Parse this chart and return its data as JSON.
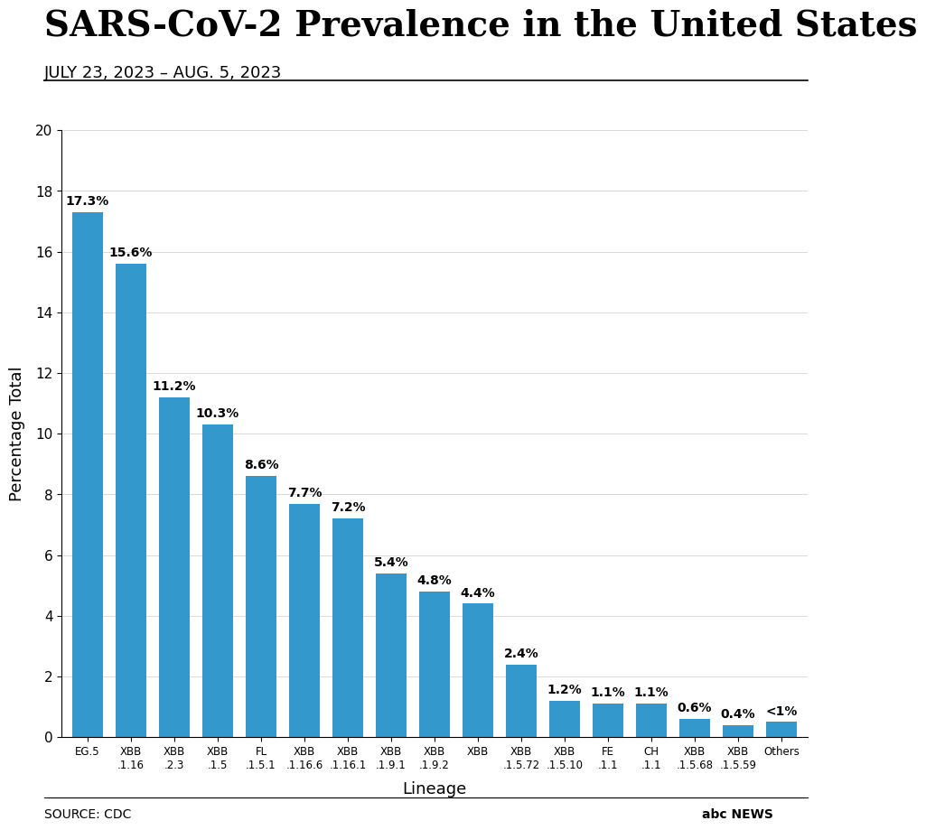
{
  "title": "SARS-CoV-2 Prevalence in the United States",
  "subtitle": "JULY 23, 2023 – AUG. 5, 2023",
  "xlabel": "Lineage",
  "ylabel": "Percentage Total",
  "source": "SOURCE: CDC",
  "categories": [
    "EG.5",
    "XBB\n.1.16",
    "XBB\n.2.3",
    "XBB\n.1.5",
    "FL\n.1.5.1",
    "XBB\n.1.16.6",
    "XBB\n.1.16.1",
    "XBB\n.1.9.1",
    "XBB\n.1.9.2",
    "XBB",
    "XBB\n.1.5.72",
    "XBB\n.1.5.10",
    "FE\n.1.1",
    "CH\n.1.1",
    "XBB\n.1.5.68",
    "XBB\n.1.5.59",
    "Others"
  ],
  "values": [
    17.3,
    15.6,
    11.2,
    10.3,
    8.6,
    7.7,
    7.2,
    5.4,
    4.8,
    4.4,
    2.4,
    1.2,
    1.1,
    1.1,
    0.6,
    0.4,
    0.5
  ],
  "labels": [
    "17.3%",
    "15.6%",
    "11.2%",
    "10.3%",
    "8.6%",
    "7.7%",
    "7.2%",
    "5.4%",
    "4.8%",
    "4.4%",
    "2.4%",
    "1.2%",
    "1.1%",
    "1.1%",
    "0.6%",
    "0.4%",
    "<1%"
  ],
  "bar_color": "#3399cc",
  "ylim": [
    0,
    20
  ],
  "yticks": [
    0,
    2,
    4,
    6,
    8,
    10,
    12,
    14,
    16,
    18,
    20
  ],
  "background_color": "#ffffff",
  "title_fontsize": 28,
  "subtitle_fontsize": 13,
  "label_fontsize": 10,
  "axis_label_fontsize": 13,
  "tick_fontsize": 11,
  "source_fontsize": 10
}
